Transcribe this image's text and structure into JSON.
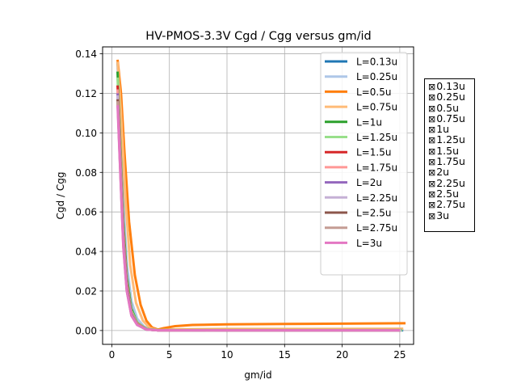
{
  "chart_data": {
    "type": "line",
    "title": "HV-PMOS-3.3V Cgd / Cgg versus gm/id",
    "xlabel": "gm/id",
    "ylabel": "Cgd / Cgg",
    "xlim": [
      -0.8,
      26.2
    ],
    "ylim": [
      -0.007,
      0.1435
    ],
    "xticks": [
      0,
      5,
      10,
      15,
      20,
      25
    ],
    "yticks": [
      0.0,
      0.02,
      0.04,
      0.06,
      0.08,
      0.1,
      0.12,
      0.14
    ],
    "xtick_labels": [
      "0",
      "5",
      "10",
      "15",
      "20",
      "25"
    ],
    "ytick_labels": [
      "0.00",
      "0.02",
      "0.04",
      "0.06",
      "0.08",
      "0.10",
      "0.12",
      "0.14"
    ],
    "grid": true,
    "legend_position": "top-right",
    "series": [
      {
        "name": "L=0.13u",
        "color": "#1f77b4",
        "points": [
          [
            0.5,
            0.136
          ],
          [
            0.7,
            0.11
          ],
          [
            1.0,
            0.06
          ],
          [
            1.3,
            0.03
          ],
          [
            1.6,
            0.014
          ],
          [
            2.0,
            0.006
          ],
          [
            2.5,
            0.002
          ],
          [
            3.2,
            0.0004
          ],
          [
            4,
            0.0002
          ],
          [
            10,
            0.0001
          ],
          [
            25.3,
            0.0001
          ]
        ]
      },
      {
        "name": "L=0.25u",
        "color": "#aec7e8",
        "points": [
          [
            0.5,
            0.133
          ],
          [
            0.7,
            0.11
          ],
          [
            1.0,
            0.065
          ],
          [
            1.3,
            0.034
          ],
          [
            1.7,
            0.015
          ],
          [
            2.2,
            0.006
          ],
          [
            2.8,
            0.002
          ],
          [
            3.5,
            0.0006
          ],
          [
            5,
            0.0005
          ],
          [
            10,
            0.0006
          ],
          [
            25.3,
            0.0007
          ]
        ]
      },
      {
        "name": "L=0.5u",
        "color": "#ff7f0e",
        "points": [
          [
            0.5,
            0.137
          ],
          [
            0.8,
            0.12
          ],
          [
            1.1,
            0.09
          ],
          [
            1.5,
            0.055
          ],
          [
            2.0,
            0.028
          ],
          [
            2.5,
            0.013
          ],
          [
            3.0,
            0.005
          ],
          [
            3.5,
            0.0015
          ],
          [
            4.0,
            0.0005
          ],
          [
            4.5,
            0.0012
          ],
          [
            5.5,
            0.0022
          ],
          [
            7,
            0.0028
          ],
          [
            10,
            0.0031
          ],
          [
            15,
            0.0033
          ],
          [
            20,
            0.0035
          ],
          [
            25.5,
            0.0037
          ]
        ]
      },
      {
        "name": "L=0.75u",
        "color": "#ffbb78",
        "points": [
          [
            0.5,
            0.136
          ],
          [
            0.8,
            0.11
          ],
          [
            1.2,
            0.065
          ],
          [
            1.6,
            0.033
          ],
          [
            2.1,
            0.014
          ],
          [
            2.7,
            0.005
          ],
          [
            3.3,
            0.0012
          ],
          [
            4,
            0.0003
          ],
          [
            6,
            0.0006
          ],
          [
            10,
            0.0008
          ],
          [
            25.3,
            0.0009
          ]
        ]
      },
      {
        "name": "L=1u",
        "color": "#2ca02c",
        "points": [
          [
            0.5,
            0.131
          ],
          [
            0.7,
            0.1
          ],
          [
            1.0,
            0.055
          ],
          [
            1.3,
            0.027
          ],
          [
            1.7,
            0.011
          ],
          [
            2.2,
            0.004
          ],
          [
            3,
            0.0008
          ],
          [
            4,
            0.0002
          ],
          [
            10,
            0.0002
          ],
          [
            25.2,
            0.0002
          ]
        ]
      },
      {
        "name": "L=1.25u",
        "color": "#98df8a",
        "points": [
          [
            0.5,
            0.128
          ],
          [
            0.7,
            0.098
          ],
          [
            1.0,
            0.052
          ],
          [
            1.3,
            0.025
          ],
          [
            1.7,
            0.01
          ],
          [
            2.2,
            0.004
          ],
          [
            3,
            0.0007
          ],
          [
            4,
            0.0002
          ],
          [
            10,
            0.0001
          ],
          [
            25.2,
            0.0001
          ]
        ]
      },
      {
        "name": "L=1.5u",
        "color": "#d62728",
        "points": [
          [
            0.5,
            0.124
          ],
          [
            0.7,
            0.095
          ],
          [
            1.0,
            0.05
          ],
          [
            1.3,
            0.024
          ],
          [
            1.7,
            0.009
          ],
          [
            2.2,
            0.0035
          ],
          [
            3,
            0.0006
          ],
          [
            4,
            0.0001
          ],
          [
            10,
            0.0001
          ],
          [
            25.1,
            0.0001
          ]
        ]
      },
      {
        "name": "L=1.75u",
        "color": "#ff9896",
        "points": [
          [
            0.5,
            0.122
          ],
          [
            0.7,
            0.093
          ],
          [
            1.0,
            0.048
          ],
          [
            1.3,
            0.023
          ],
          [
            1.7,
            0.009
          ],
          [
            2.2,
            0.0033
          ],
          [
            3,
            0.0006
          ],
          [
            4,
            0.0001
          ],
          [
            10,
            0.0001
          ],
          [
            25.1,
            0.0001
          ]
        ]
      },
      {
        "name": "L=2u",
        "color": "#9467bd",
        "points": [
          [
            0.5,
            0.12
          ],
          [
            0.7,
            0.09
          ],
          [
            1.0,
            0.046
          ],
          [
            1.3,
            0.022
          ],
          [
            1.7,
            0.0085
          ],
          [
            2.2,
            0.003
          ],
          [
            3,
            0.0005
          ],
          [
            4,
            0.0001
          ],
          [
            10,
            0.0001
          ],
          [
            25.1,
            0.0001
          ]
        ]
      },
      {
        "name": "L=2.25u",
        "color": "#c5b0d5",
        "points": [
          [
            0.5,
            0.119
          ],
          [
            0.7,
            0.089
          ],
          [
            1.0,
            0.045
          ],
          [
            1.3,
            0.021
          ],
          [
            1.7,
            0.008
          ],
          [
            2.2,
            0.003
          ],
          [
            3,
            0.0005
          ],
          [
            4,
            0.0001
          ],
          [
            10,
            0.0001
          ],
          [
            25.1,
            0.0001
          ]
        ]
      },
      {
        "name": "L=2.5u",
        "color": "#8c564b",
        "points": [
          [
            0.5,
            0.117
          ],
          [
            0.7,
            0.087
          ],
          [
            1.0,
            0.044
          ],
          [
            1.3,
            0.021
          ],
          [
            1.7,
            0.008
          ],
          [
            2.2,
            0.003
          ],
          [
            3,
            0.0005
          ],
          [
            4,
            0.0001
          ],
          [
            10,
            0.0001
          ],
          [
            25.0,
            0.0001
          ]
        ]
      },
      {
        "name": "L=2.75u",
        "color": "#c49c94",
        "points": [
          [
            0.5,
            0.116
          ],
          [
            0.7,
            0.086
          ],
          [
            1.0,
            0.043
          ],
          [
            1.3,
            0.02
          ],
          [
            1.7,
            0.0078
          ],
          [
            2.2,
            0.0029
          ],
          [
            3,
            0.0005
          ],
          [
            4,
            0.0001
          ],
          [
            10,
            0.0001
          ],
          [
            25.0,
            0.0001
          ]
        ]
      },
      {
        "name": "L=3u",
        "color": "#e377c2",
        "points": [
          [
            0.5,
            0.114
          ],
          [
            0.7,
            0.085
          ],
          [
            1.0,
            0.042
          ],
          [
            1.3,
            0.02
          ],
          [
            1.7,
            0.0075
          ],
          [
            2.2,
            0.0028
          ],
          [
            3,
            0.0005
          ],
          [
            4,
            0.0001
          ],
          [
            10,
            0.0001
          ],
          [
            25.0,
            0.0001
          ]
        ]
      }
    ],
    "side_legend": {
      "items": [
        "0.13u",
        "0.25u",
        "0.5u",
        "0.75u",
        "1u",
        "1.25u",
        "1.5u",
        "1.75u",
        "2u",
        "2.25u",
        "2.5u",
        "2.75u",
        "3u"
      ],
      "checkbox_icon": "checkbox-crossed-icon"
    }
  }
}
